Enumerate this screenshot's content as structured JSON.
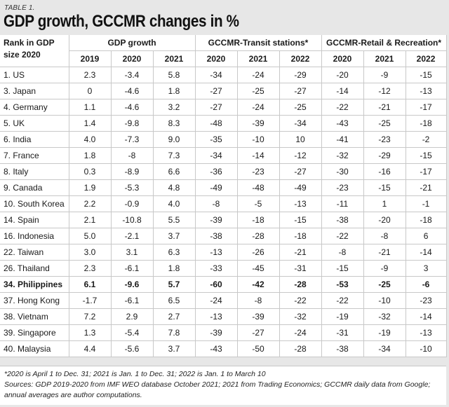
{
  "table_label": "TABLE 1.",
  "title": "GDP growth, GCCMR changes in %",
  "header": {
    "rank_col": "Rank in GDP size 2020",
    "groups": [
      "GDP growth",
      "GCCMR-Transit stations*",
      "GCCMR-Retail & Recreation*"
    ],
    "years": [
      "2019",
      "2020",
      "2021",
      "2020",
      "2021",
      "2022",
      "2020",
      "2021",
      "2022"
    ]
  },
  "rows": [
    {
      "country": "1. US",
      "values": [
        "2.3",
        "-3.4",
        "5.8",
        "-34",
        "-24",
        "-29",
        "-20",
        "-9",
        "-15"
      ],
      "bold": false
    },
    {
      "country": "3. Japan",
      "values": [
        "0",
        "-4.6",
        "1.8",
        "-27",
        "-25",
        "-27",
        "-14",
        "-12",
        "-13"
      ],
      "bold": false
    },
    {
      "country": "4. Germany",
      "values": [
        "1.1",
        "-4.6",
        "3.2",
        "-27",
        "-24",
        "-25",
        "-22",
        "-21",
        "-17"
      ],
      "bold": false
    },
    {
      "country": "5. UK",
      "values": [
        "1.4",
        "-9.8",
        "8.3",
        "-48",
        "-39",
        "-34",
        "-43",
        "-25",
        "-18"
      ],
      "bold": false
    },
    {
      "country": "6. India",
      "values": [
        "4.0",
        "-7.3",
        "9.0",
        "-35",
        "-10",
        "10",
        "-41",
        "-23",
        "-2"
      ],
      "bold": false
    },
    {
      "country": "7. France",
      "values": [
        "1.8",
        "-8",
        "7.3",
        "-34",
        "-14",
        "-12",
        "-32",
        "-29",
        "-15"
      ],
      "bold": false
    },
    {
      "country": "8. Italy",
      "values": [
        "0.3",
        "-8.9",
        "6.6",
        "-36",
        "-23",
        "-27",
        "-30",
        "-16",
        "-17"
      ],
      "bold": false
    },
    {
      "country": "9. Canada",
      "values": [
        "1.9",
        "-5.3",
        "4.8",
        "-49",
        "-48",
        "-49",
        "-23",
        "-15",
        "-21"
      ],
      "bold": false
    },
    {
      "country": "10. South Korea",
      "values": [
        "2.2",
        "-0.9",
        "4.0",
        "-8",
        "-5",
        "-13",
        "-11",
        "1",
        "-1"
      ],
      "bold": false
    },
    {
      "country": "14. Spain",
      "values": [
        "2.1",
        "-10.8",
        "5.5",
        "-39",
        "-18",
        "-15",
        "-38",
        "-20",
        "-18"
      ],
      "bold": false
    },
    {
      "country": "16. Indonesia",
      "values": [
        "5.0",
        "-2.1",
        "3.7",
        "-38",
        "-28",
        "-18",
        "-22",
        "-8",
        "6"
      ],
      "bold": false
    },
    {
      "country": "22. Taiwan",
      "values": [
        "3.0",
        "3.1",
        "6.3",
        "-13",
        "-26",
        "-21",
        "-8",
        "-21",
        "-14"
      ],
      "bold": false
    },
    {
      "country": "26. Thailand",
      "values": [
        "2.3",
        "-6.1",
        "1.8",
        "-33",
        "-45",
        "-31",
        "-15",
        "-9",
        "3"
      ],
      "bold": false
    },
    {
      "country": "34. Philippines",
      "values": [
        "6.1",
        "-9.6",
        "5.7",
        "-60",
        "-42",
        "-28",
        "-53",
        "-25",
        "-6"
      ],
      "bold": true
    },
    {
      "country": "37. Hong Kong",
      "values": [
        "-1.7",
        "-6.1",
        "6.5",
        "-24",
        "-8",
        "-22",
        "-22",
        "-10",
        "-23"
      ],
      "bold": false
    },
    {
      "country": "38. Vietnam",
      "values": [
        "7.2",
        "2.9",
        "2.7",
        "-13",
        "-39",
        "-32",
        "-19",
        "-32",
        "-14"
      ],
      "bold": false
    },
    {
      "country": "39. Singapore",
      "values": [
        "1.3",
        "-5.4",
        "7.8",
        "-39",
        "-27",
        "-24",
        "-31",
        "-19",
        "-13"
      ],
      "bold": false
    },
    {
      "country": "40. Malaysia",
      "values": [
        "4.4",
        "-5.6",
        "3.7",
        "-43",
        "-50",
        "-28",
        "-38",
        "-34",
        "-10"
      ],
      "bold": false
    }
  ],
  "footer": {
    "note": "*2020 is April 1 to Dec. 31; 2021 is Jan. 1 to Dec. 31; 2022 is Jan. 1 to March 10",
    "sources_line1": "Sources: GDP 2019-2020 from IMF WEO database October 2021; 2021 from Trading Economics; GCCMR daily data from Google;",
    "sources_line2": "annual averages are author computations."
  }
}
